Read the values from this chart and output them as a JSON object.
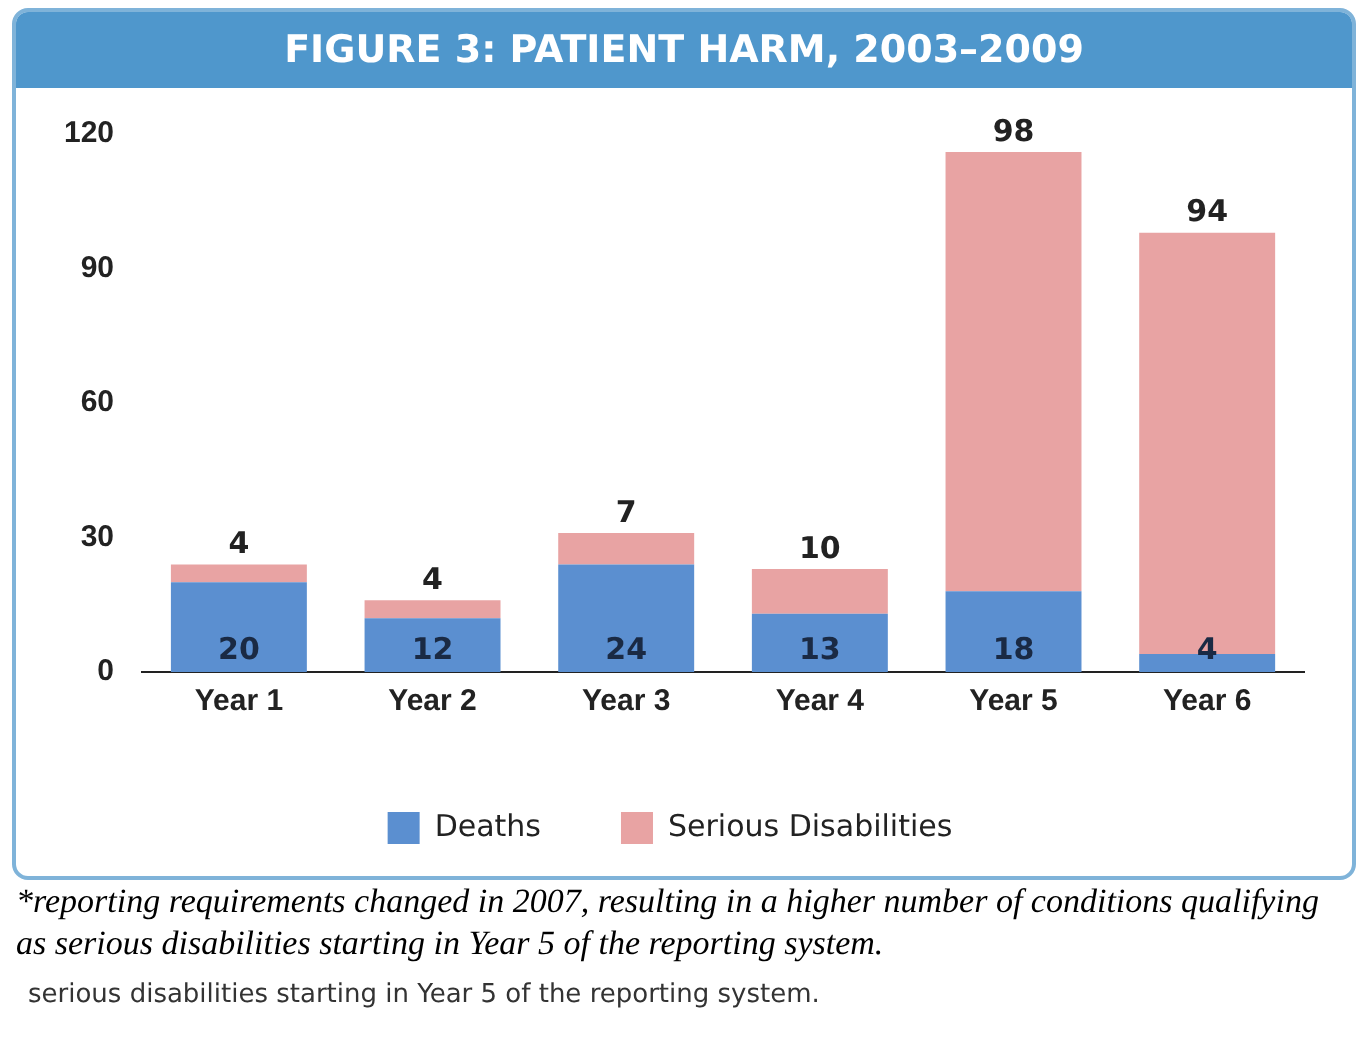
{
  "chart_data": {
    "type": "bar",
    "title": "FIGURE 3: PATIENT HARM, 2003–2009",
    "categories": [
      "Year 1",
      "Year 2",
      "Year 3",
      "Year 4",
      "Year 5",
      "Year 6"
    ],
    "series": [
      {
        "name": "Deaths",
        "color": "#5b8fd0",
        "values": [
          20,
          12,
          24,
          13,
          18,
          4
        ]
      },
      {
        "name": "Serious Disabilities",
        "color": "#e8a3a3",
        "values": [
          4,
          4,
          7,
          10,
          98,
          94
        ]
      }
    ],
    "stacked": true,
    "ylim": [
      0,
      120
    ],
    "yticks": [
      0,
      30,
      60,
      90,
      120
    ],
    "grid": false,
    "legend": "bottom",
    "data_labels": true,
    "annotations": [
      "*reporting requirements changed in 2007, resulting in a higher number of conditions qualifying as serious disabilities starting in Year 5 of the reporting system.",
      "serious disabilities starting in Year 5 of the reporting system."
    ]
  }
}
